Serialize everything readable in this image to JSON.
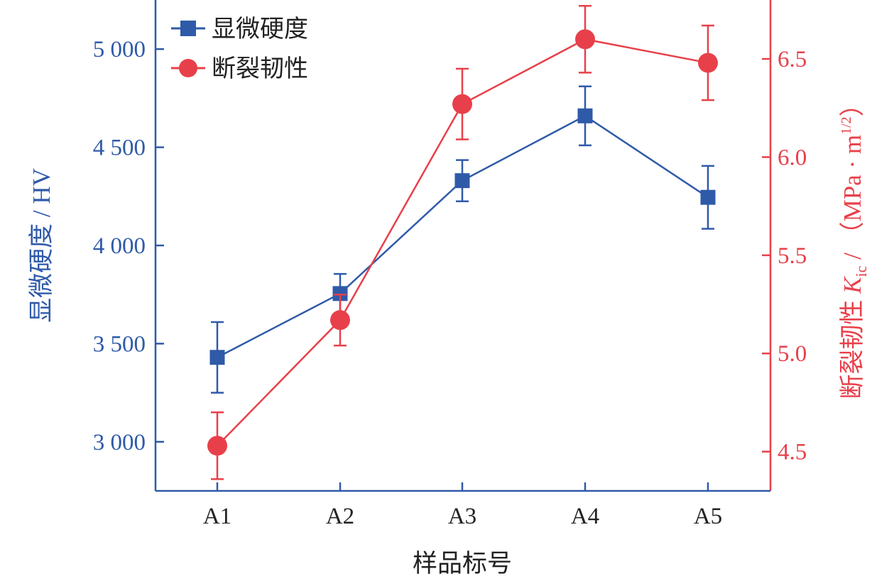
{
  "chart_data": {
    "type": "line",
    "categories": [
      "A1",
      "A2",
      "A3",
      "A4",
      "A5"
    ],
    "xlabel": "样品标号",
    "ylabel_left": "显微硬度 / HV",
    "ylabel_right_prefix": "断裂韧性 ",
    "ylabel_right_symbol": "K",
    "ylabel_right_subscript": "ic",
    "ylabel_right_suffix": " / （MPa · m",
    "ylabel_right_superscript": "1/2",
    "ylabel_right_close": "）",
    "ylim_left": [
      2750,
      5250
    ],
    "ylim_right": [
      4.3,
      6.8
    ],
    "yticks_left": [
      3000,
      3500,
      4000,
      4500,
      5000
    ],
    "yticks_left_labels": [
      "3 000",
      "3 500",
      "4 000",
      "4 500",
      "5 000"
    ],
    "yticks_right": [
      4.5,
      5.0,
      5.5,
      6.0,
      6.5
    ],
    "yticks_right_labels": [
      "4.5",
      "5.0",
      "5.5",
      "6.0",
      "6.5"
    ],
    "legend_position": "top-left",
    "series": [
      {
        "name": "显微硬度",
        "axis": "left",
        "marker": "square",
        "color": "#2f5aa8",
        "values": [
          3430,
          3755,
          4330,
          4660,
          4245
        ],
        "errors": [
          180,
          100,
          105,
          150,
          160
        ]
      },
      {
        "name": "断裂韧性",
        "axis": "right",
        "marker": "circle",
        "color": "#e8404a",
        "values": [
          4.53,
          5.17,
          6.27,
          6.6,
          6.48
        ],
        "errors": [
          0.17,
          0.13,
          0.18,
          0.17,
          0.19
        ]
      }
    ],
    "axis_colors": {
      "left": "#2f5aa8",
      "right": "#e8404a",
      "bottom": "#2f5aa8",
      "text": "#222222"
    }
  }
}
